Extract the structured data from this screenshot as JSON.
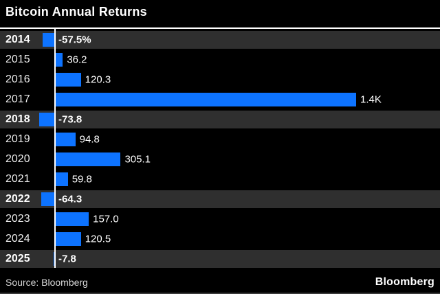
{
  "header": {
    "title": "Bitcoin Annual Returns"
  },
  "chart_data": {
    "type": "bar",
    "orientation": "horizontal",
    "title": "Bitcoin Annual Returns",
    "unit": "%",
    "categories": [
      "2014",
      "2015",
      "2016",
      "2017",
      "2018",
      "2019",
      "2020",
      "2021",
      "2022",
      "2023",
      "2024",
      "2025"
    ],
    "values": [
      -57.5,
      36.2,
      120.3,
      1400,
      -73.8,
      94.8,
      305.1,
      59.8,
      -64.3,
      157.0,
      120.5,
      -7.8
    ],
    "value_labels": [
      "-57.5%",
      "36.2",
      "120.3",
      "1.4K",
      "-73.8",
      "94.8",
      "305.1",
      "59.8",
      "-64.3",
      "157.0",
      "120.5",
      "-7.8"
    ],
    "highlighted": [
      true,
      false,
      false,
      false,
      true,
      false,
      false,
      false,
      true,
      false,
      false,
      true
    ],
    "xlim": [
      -100,
      1450
    ],
    "grid": false,
    "legend": "none",
    "bar_color": "#0d73ff",
    "highlight_row_color": "#2f2f2f",
    "baseline_color": "#ffffff",
    "background_color": "#000000"
  },
  "footer": {
    "source_label": "Source: Bloomberg",
    "brand_logo": "Bloomberg"
  }
}
